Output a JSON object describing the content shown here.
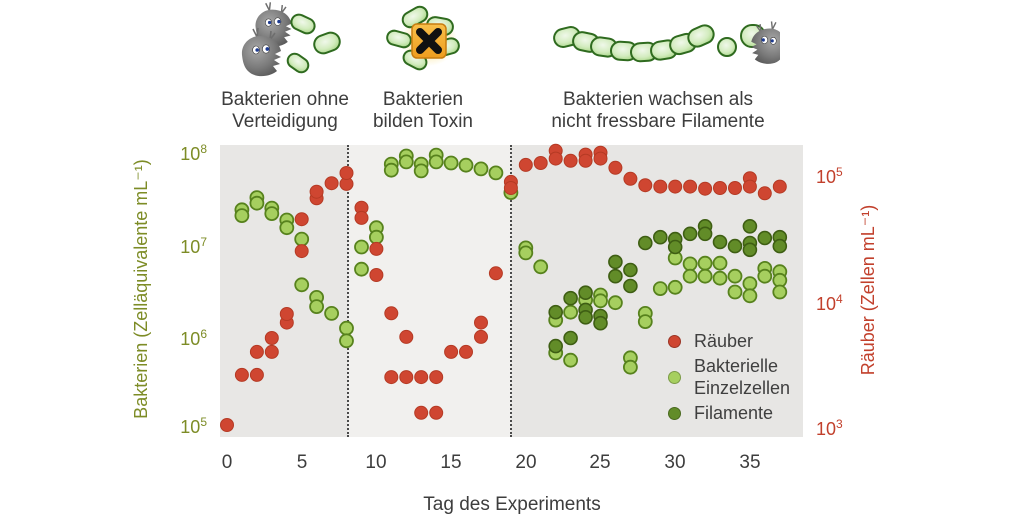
{
  "figure": {
    "phases": [
      {
        "title_lines": [
          "Bakterien ohne",
          "Verteidigung"
        ]
      },
      {
        "title_lines": [
          "Bakterien",
          "bilden Toxin"
        ]
      },
      {
        "title_lines": [
          "Bakterien wachsen als",
          "nicht fressbare Filamente"
        ]
      }
    ]
  },
  "chart_data": {
    "type": "scatter",
    "xlabel": "Tag des Experiments",
    "x_ticks": [
      "0",
      "5",
      "10",
      "15",
      "20",
      "25",
      "30",
      "35"
    ],
    "x_range": [
      0,
      38
    ],
    "grid": false,
    "legend_position": "lower right",
    "axes": {
      "left": {
        "label": "Bakterien (Zelläquivalente mL⁻¹)",
        "scale": "log",
        "range": [
          100000.0,
          100000000.0
        ],
        "color": "#7d8c26",
        "ticks": [
          {
            "base": "10",
            "exp": "8"
          },
          {
            "base": "10",
            "exp": "7"
          },
          {
            "base": "10",
            "exp": "6"
          },
          {
            "base": "10",
            "exp": "5"
          }
        ]
      },
      "right": {
        "label": "Räuber (Zellen mL⁻¹)",
        "scale": "log",
        "range": [
          1000.0,
          100000.0
        ],
        "color": "#c2402c",
        "ticks": [
          {
            "base": "10",
            "exp": "5"
          },
          {
            "base": "10",
            "exp": "4"
          },
          {
            "base": "10",
            "exp": "3"
          }
        ]
      }
    },
    "phase_boundaries_days": [
      8.1,
      19.0
    ],
    "legend": {
      "items": [
        {
          "lines": [
            "Räuber",
            ""
          ],
          "color": "#cf4631"
        },
        {
          "lines": [
            "Bakterielle",
            "Einzelzellen"
          ],
          "color": "#a6cf5f"
        },
        {
          "lines": [
            "Filamente",
            ""
          ],
          "color": "#628c28"
        }
      ]
    },
    "series": [
      {
        "name": "Bakterielle Einzelzellen",
        "axis": "left",
        "fill": "#a6cf5f",
        "stroke": "#57821d",
        "stroke_width": 1.8,
        "points": [
          [
            1,
            22000000.0
          ],
          [
            1,
            19000000.0
          ],
          [
            2,
            30000000.0
          ],
          [
            2,
            26000000.0
          ],
          [
            3,
            23000000.0
          ],
          [
            3,
            20000000.0
          ],
          [
            4,
            17000000.0
          ],
          [
            4,
            14000000.0
          ],
          [
            5,
            10500000.0
          ],
          [
            5,
            3300000.0
          ],
          [
            6,
            2400000.0
          ],
          [
            6,
            1900000.0
          ],
          [
            7,
            1600000.0
          ],
          [
            8,
            1100000.0
          ],
          [
            8,
            800000.0
          ],
          [
            9,
            8600000.0
          ],
          [
            9,
            4900000.0
          ],
          [
            10,
            14000000.0
          ],
          [
            10,
            11000000.0
          ],
          [
            11,
            70000000.0
          ],
          [
            11,
            60000000.0
          ],
          [
            12,
            86000000.0
          ],
          [
            12,
            74000000.0
          ],
          [
            13,
            70000000.0
          ],
          [
            13,
            59000000.0
          ],
          [
            14,
            88000000.0
          ],
          [
            14,
            74000000.0
          ],
          [
            15,
            72000000.0
          ],
          [
            16,
            68000000.0
          ],
          [
            17,
            62000000.0
          ],
          [
            18,
            56000000.0
          ],
          [
            19,
            34000000.0
          ],
          [
            20,
            8400000.0
          ],
          [
            20,
            7400000.0
          ],
          [
            21,
            5200000.0
          ],
          [
            22,
            1350000.0
          ],
          [
            22,
            590000.0
          ],
          [
            23,
            1650000.0
          ],
          [
            23,
            490000.0
          ],
          [
            24,
            2250000.0
          ],
          [
            25,
            2550000.0
          ],
          [
            25,
            2200000.0
          ],
          [
            26,
            2100000.0
          ],
          [
            27,
            520000.0
          ],
          [
            27,
            410000.0
          ],
          [
            28,
            1600000.0
          ],
          [
            28,
            1300000.0
          ],
          [
            29,
            3000000.0
          ],
          [
            30,
            6500000.0
          ],
          [
            30,
            3100000.0
          ],
          [
            31,
            5600000.0
          ],
          [
            31,
            4100000.0
          ],
          [
            32,
            5700000.0
          ],
          [
            32,
            4100000.0
          ],
          [
            33,
            5700000.0
          ],
          [
            33,
            3900000.0
          ],
          [
            34,
            4100000.0
          ],
          [
            34,
            2750000.0
          ],
          [
            35,
            3400000.0
          ],
          [
            35,
            2500000.0
          ],
          [
            36,
            5000000.0
          ],
          [
            36,
            4100000.0
          ],
          [
            37,
            4600000.0
          ],
          [
            37,
            3700000.0
          ],
          [
            37,
            2750000.0
          ]
        ]
      },
      {
        "name": "Filamente",
        "axis": "left",
        "fill": "#628c28",
        "stroke": "#3e5e13",
        "stroke_width": 1.6,
        "points": [
          [
            22,
            1650000.0
          ],
          [
            22,
            700000.0
          ],
          [
            23,
            2350000.0
          ],
          [
            23,
            860000.0
          ],
          [
            24,
            2700000.0
          ],
          [
            24,
            1750000.0
          ],
          [
            24,
            1450000.0
          ],
          [
            25,
            1500000.0
          ],
          [
            25,
            1250000.0
          ],
          [
            26,
            5900000.0
          ],
          [
            26,
            4100000.0
          ],
          [
            27,
            4800000.0
          ],
          [
            27,
            3200000.0
          ],
          [
            28,
            9500000.0
          ],
          [
            29,
            11000000.0
          ],
          [
            30,
            10500000.0
          ],
          [
            30,
            8600000.0
          ],
          [
            31,
            12000000.0
          ],
          [
            32,
            14500000.0
          ],
          [
            32,
            12000000.0
          ],
          [
            33,
            9750000.0
          ],
          [
            34,
            8800000.0
          ],
          [
            35,
            14500000.0
          ],
          [
            35,
            9500000.0
          ],
          [
            35,
            8000000.0
          ],
          [
            36,
            10800000.0
          ],
          [
            37,
            11000000.0
          ],
          [
            37,
            8800000.0
          ]
        ]
      },
      {
        "name": "Räuber",
        "axis": "right",
        "fill": "#cf4631",
        "stroke": "#b53a24",
        "stroke_width": 1.0,
        "points": [
          [
            0,
            1000.0
          ],
          [
            1,
            2500.0
          ],
          [
            2,
            2500.0
          ],
          [
            2,
            3800.0
          ],
          [
            3,
            3800.0
          ],
          [
            3,
            4900.0
          ],
          [
            4,
            6500.0
          ],
          [
            4,
            7600.0
          ],
          [
            5,
            24000.0
          ],
          [
            5,
            43000.0
          ],
          [
            6,
            63000.0
          ],
          [
            6,
            71000.0
          ],
          [
            7,
            83000.0
          ],
          [
            8,
            82000.0
          ],
          [
            8,
            100000.0
          ],
          [
            9,
            53000.0
          ],
          [
            9,
            44000.0
          ],
          [
            10,
            25000.0
          ],
          [
            10,
            15500.0
          ],
          [
            11,
            7700.0
          ],
          [
            11,
            2400.0
          ],
          [
            12,
            5000.0
          ],
          [
            12,
            2400.0
          ],
          [
            13,
            2400.0
          ],
          [
            13,
            1250.0
          ],
          [
            14,
            2400.0
          ],
          [
            14,
            1250.0
          ],
          [
            15,
            3800.0
          ],
          [
            16,
            3800.0
          ],
          [
            17,
            6500.0
          ],
          [
            17,
            5000.0
          ],
          [
            18,
            16000.0
          ],
          [
            19,
            85000.0
          ],
          [
            19,
            76000.0
          ],
          [
            20,
            116000.0
          ],
          [
            21,
            120000.0
          ],
          [
            22,
            150000.0
          ],
          [
            22,
            130000.0
          ],
          [
            23,
            125000.0
          ],
          [
            24,
            140000.0
          ],
          [
            24,
            125000.0
          ],
          [
            25,
            145000.0
          ],
          [
            25,
            130000.0
          ],
          [
            26,
            110000.0
          ],
          [
            27,
            90000.0
          ],
          [
            28,
            80000.0
          ],
          [
            29,
            78000.0
          ],
          [
            30,
            78000.0
          ],
          [
            31,
            78000.0
          ],
          [
            32,
            75000.0
          ],
          [
            33,
            76000.0
          ],
          [
            34,
            76000.0
          ],
          [
            35,
            91000.0
          ],
          [
            35,
            78000.0
          ],
          [
            36,
            69000.0
          ],
          [
            37,
            78000.0
          ]
        ]
      }
    ]
  }
}
